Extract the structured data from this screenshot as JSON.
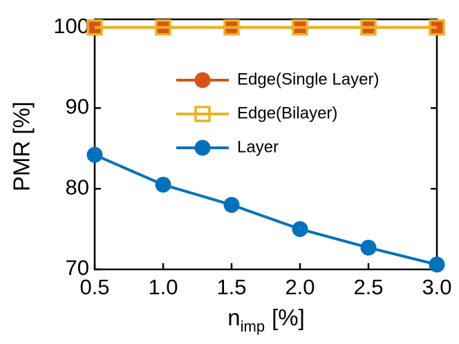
{
  "chart_data": {
    "type": "line",
    "x_label": {
      "base": "n",
      "subscript": "imp",
      "unit": "[%]"
    },
    "y_label": "PMR [%]",
    "x": [
      0.5,
      1.0,
      1.5,
      2.0,
      2.5,
      3.0
    ],
    "series": [
      {
        "name": "Edge(Single Layer)",
        "color": "#d95319",
        "marker": "filled-circle",
        "values": [
          100,
          100,
          100,
          100,
          100,
          100
        ]
      },
      {
        "name": "Edge(Bilayer)",
        "color": "#edb120",
        "marker": "open-square",
        "values": [
          100,
          100,
          100,
          100,
          100,
          100
        ]
      },
      {
        "name": "Layer",
        "color": "#0072bd",
        "marker": "filled-circle",
        "values": [
          84.2,
          80.5,
          78.0,
          75.0,
          72.7,
          70.6
        ]
      }
    ],
    "xlim": [
      0.5,
      3.0
    ],
    "xticks": [
      0.5,
      {
        "value": 1,
        "label": "1.0"
      },
      1.5,
      {
        "value": 2,
        "label": "2.0"
      },
      2.5,
      {
        "value": 3,
        "label": "3.0"
      }
    ],
    "ylim": [
      70,
      101
    ],
    "yticks": [
      70,
      80,
      90,
      100
    ],
    "grid": false,
    "legend": "upper right"
  }
}
